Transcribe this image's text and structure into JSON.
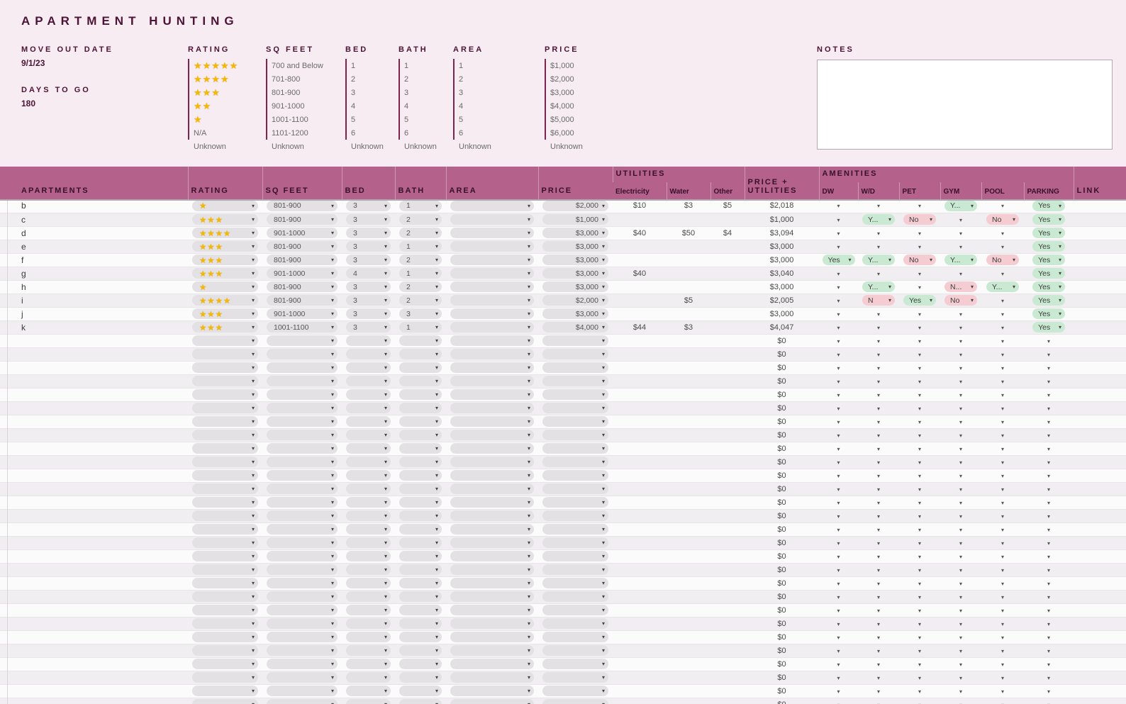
{
  "title": "APARTMENT HUNTING",
  "colors": {
    "accent_dark": "#4c1336",
    "header_bg": "#b4628c",
    "background_pink": "#f6ecf2",
    "yes_pill": "#c9e9d2",
    "no_pill": "#f5ccd2",
    "star_gold": "#f6b700"
  },
  "summary": {
    "move_out_date_label": "MOVE OUT DATE",
    "move_out_date_value": "9/1/23",
    "days_to_go_label": "DAYS TO GO",
    "days_to_go_value": "180"
  },
  "notes": {
    "label": "NOTES",
    "content": ""
  },
  "legend": {
    "columns": [
      {
        "key": "rating",
        "label": "RATING",
        "items": [
          "★★★★★",
          "★★★★",
          "★★★",
          "★★",
          "★",
          "N/A",
          "Unknown"
        ]
      },
      {
        "key": "sq_feet",
        "label": "SQ FEET",
        "items": [
          "700 and Below",
          "701-800",
          "801-900",
          "901-1000",
          "1001-1100",
          "1101-1200",
          "Unknown"
        ]
      },
      {
        "key": "bed",
        "label": "BED",
        "items": [
          "1",
          "2",
          "3",
          "4",
          "5",
          "6",
          "Unknown"
        ]
      },
      {
        "key": "bath",
        "label": "BATH",
        "items": [
          "1",
          "2",
          "3",
          "4",
          "5",
          "6",
          "Unknown"
        ]
      },
      {
        "key": "area",
        "label": "AREA",
        "items": [
          "1",
          "2",
          "3",
          "4",
          "5",
          "6",
          "Unknown"
        ]
      },
      {
        "key": "price",
        "label": "PRICE",
        "items": [
          "$1,000",
          "$2,000",
          "$3,000",
          "$4,000",
          "$5,000",
          "$6,000",
          "Unknown"
        ]
      }
    ]
  },
  "table": {
    "columns": {
      "apartments": "APARTMENTS",
      "rating": "RATING",
      "sq_feet": "SQ FEET",
      "bed": "BED",
      "bath": "BATH",
      "area": "AREA",
      "price": "PRICE",
      "utilities_group": "UTILITIES",
      "electricity": "Electricity",
      "water": "Water",
      "other": "Other",
      "price_plus_utilities": "PRICE + UTILITIES",
      "amenities_group": "AMENITIES",
      "dw": "DW",
      "wd": "W/D",
      "pet": "PET",
      "gym": "GYM",
      "pool": "POOL",
      "parking": "PARKING",
      "link": "LINK"
    },
    "rows": [
      {
        "name": "b",
        "stars": "★",
        "sq_feet": "801-900",
        "bed": "3",
        "bath": "1",
        "area": "",
        "price": "$2,000",
        "electricity": "$10",
        "water": "$3",
        "other": "$5",
        "total": "$2,018",
        "amenities": {
          "gym": {
            "text": "Y...",
            "state": "yes"
          },
          "parking": {
            "text": "Yes",
            "state": "yes"
          }
        }
      },
      {
        "name": "c",
        "stars": "★★★",
        "sq_feet": "801-900",
        "bed": "3",
        "bath": "2",
        "area": "",
        "price": "$1,000",
        "electricity": "",
        "water": "",
        "other": "",
        "total": "$1,000",
        "amenities": {
          "wd": {
            "text": "Y...",
            "state": "yes"
          },
          "pet": {
            "text": "No",
            "state": "no"
          },
          "pool": {
            "text": "No",
            "state": "no"
          },
          "parking": {
            "text": "Yes",
            "state": "yes"
          }
        }
      },
      {
        "name": "d",
        "stars": "★★★★",
        "sq_feet": "901-1000",
        "bed": "3",
        "bath": "2",
        "area": "",
        "price": "$3,000",
        "electricity": "$40",
        "water": "$50",
        "other": "$4",
        "total": "$3,094",
        "amenities": {
          "parking": {
            "text": "Yes",
            "state": "yes"
          }
        }
      },
      {
        "name": "e",
        "stars": "★★★",
        "sq_feet": "801-900",
        "bed": "3",
        "bath": "1",
        "area": "",
        "price": "$3,000",
        "electricity": "",
        "water": "",
        "other": "",
        "total": "$3,000",
        "amenities": {
          "parking": {
            "text": "Yes",
            "state": "yes"
          }
        }
      },
      {
        "name": "f",
        "stars": "★★★",
        "sq_feet": "801-900",
        "bed": "3",
        "bath": "2",
        "area": "",
        "price": "$3,000",
        "electricity": "",
        "water": "",
        "other": "",
        "total": "$3,000",
        "amenities": {
          "dw": {
            "text": "Yes",
            "state": "yes"
          },
          "wd": {
            "text": "Y...",
            "state": "yes"
          },
          "pet": {
            "text": "No",
            "state": "no"
          },
          "gym": {
            "text": "Y...",
            "state": "yes"
          },
          "pool": {
            "text": "No",
            "state": "no"
          },
          "parking": {
            "text": "Yes",
            "state": "yes"
          }
        }
      },
      {
        "name": "g",
        "stars": "★★★",
        "sq_feet": "901-1000",
        "bed": "4",
        "bath": "1",
        "area": "",
        "price": "$3,000",
        "electricity": "$40",
        "water": "",
        "other": "",
        "total": "$3,040",
        "amenities": {
          "parking": {
            "text": "Yes",
            "state": "yes"
          }
        }
      },
      {
        "name": "h",
        "stars": "★",
        "sq_feet": "801-900",
        "bed": "3",
        "bath": "2",
        "area": "",
        "price": "$3,000",
        "electricity": "",
        "water": "",
        "other": "",
        "total": "$3,000",
        "amenities": {
          "wd": {
            "text": "Y...",
            "state": "yes"
          },
          "gym": {
            "text": "N...",
            "state": "no"
          },
          "pool": {
            "text": "Y...",
            "state": "yes"
          },
          "parking": {
            "text": "Yes",
            "state": "yes"
          }
        }
      },
      {
        "name": "i",
        "stars": "★★★★",
        "sq_feet": "801-900",
        "bed": "3",
        "bath": "2",
        "area": "",
        "price": "$2,000",
        "electricity": "",
        "water": "$5",
        "other": "",
        "total": "$2,005",
        "amenities": {
          "wd": {
            "text": "N",
            "state": "no"
          },
          "pet": {
            "text": "Yes",
            "state": "yes"
          },
          "gym": {
            "text": "No",
            "state": "no"
          },
          "parking": {
            "text": "Yes",
            "state": "yes"
          }
        }
      },
      {
        "name": "j",
        "stars": "★★★",
        "sq_feet": "901-1000",
        "bed": "3",
        "bath": "3",
        "area": "",
        "price": "$3,000",
        "electricity": "",
        "water": "",
        "other": "",
        "total": "$3,000",
        "amenities": {
          "parking": {
            "text": "Yes",
            "state": "yes"
          }
        }
      },
      {
        "name": "k",
        "stars": "★★★",
        "sq_feet": "1001-1100",
        "bed": "3",
        "bath": "1",
        "area": "",
        "price": "$4,000",
        "electricity": "$44",
        "water": "$3",
        "other": "",
        "total": "$4,047",
        "amenities": {
          "parking": {
            "text": "Yes",
            "state": "yes"
          }
        }
      }
    ],
    "empty_row": {
      "total": "$0"
    },
    "empty_rows_count": 28
  }
}
